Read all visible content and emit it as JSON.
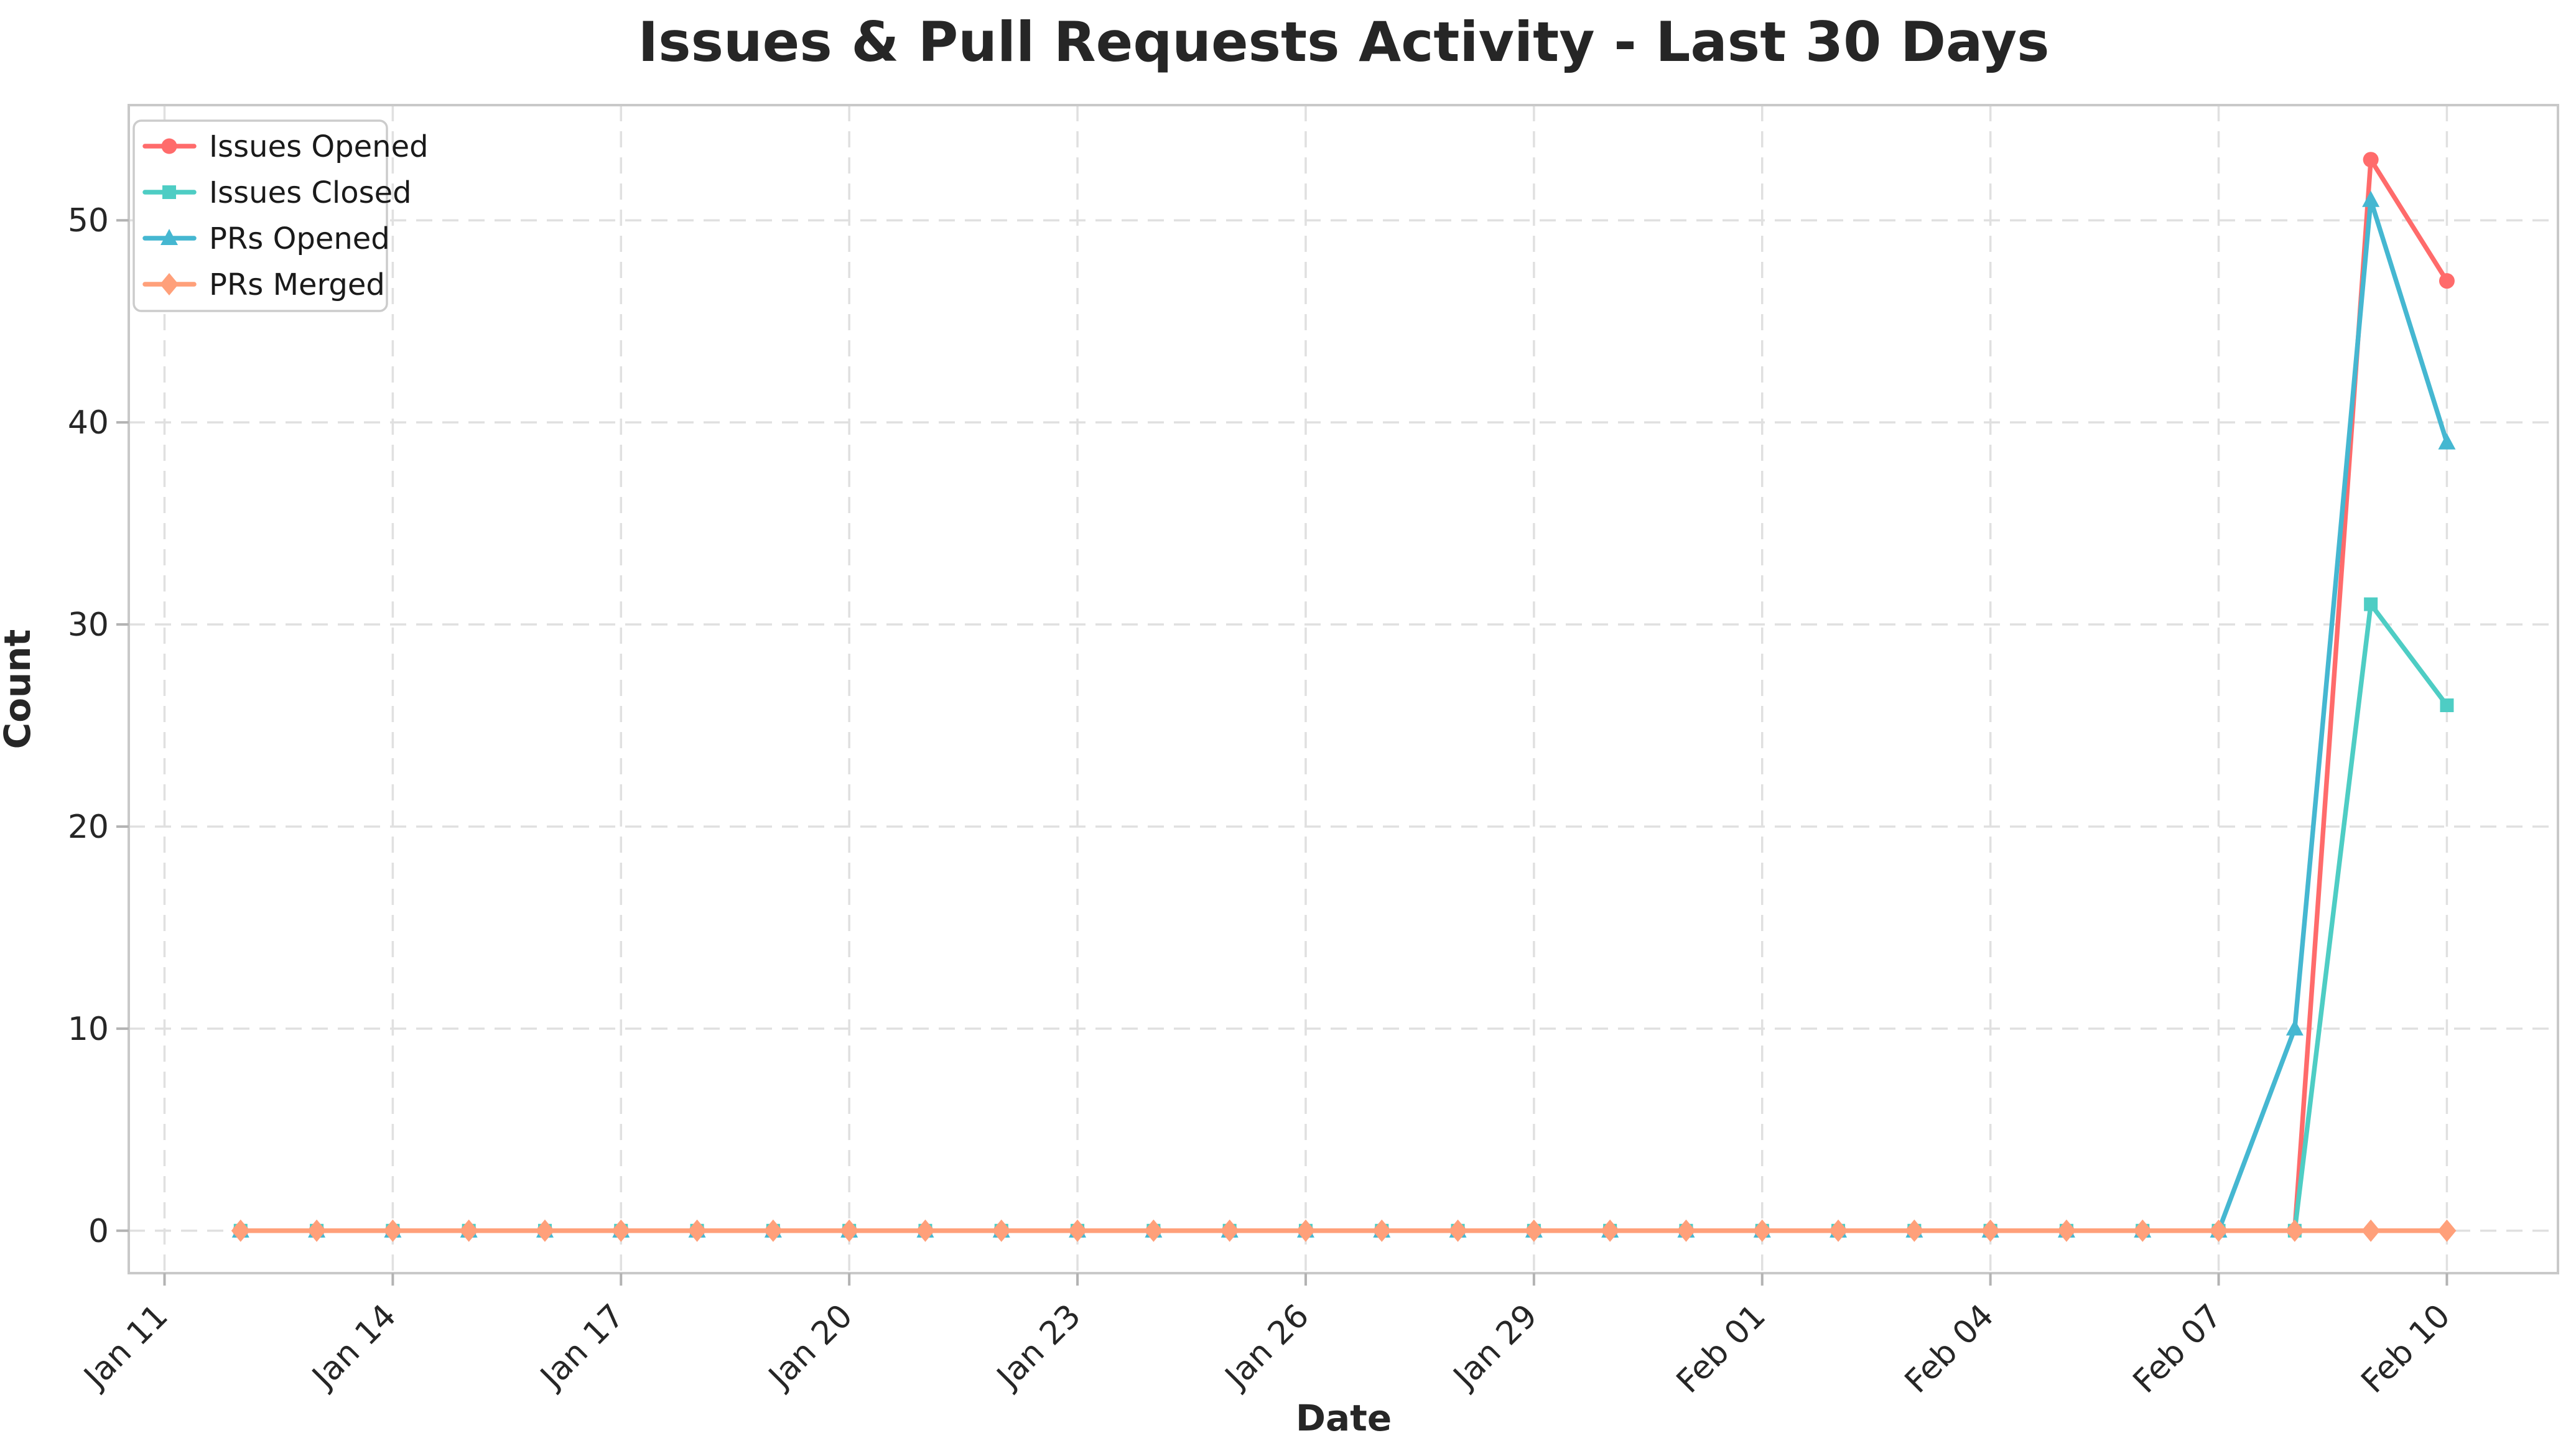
{
  "chart_data": {
    "type": "line",
    "title": "Issues & Pull Requests Activity - Last 30 Days",
    "xlabel": "Date",
    "ylabel": "Count",
    "grid": true,
    "legend_position": "upper-left",
    "background_color": "#ffffff",
    "gridline_color": "#e0e0e0",
    "spine_color": "#c9c9c9",
    "text_color": "#262626",
    "ylim": [
      -2.1,
      55.7
    ],
    "y_ticks": [
      0,
      10,
      20,
      30,
      40,
      50
    ],
    "x_ticks": [
      {
        "label": "Jan 11",
        "day": 0
      },
      {
        "label": "Jan 14",
        "day": 3
      },
      {
        "label": "Jan 17",
        "day": 6
      },
      {
        "label": "Jan 20",
        "day": 9
      },
      {
        "label": "Jan 23",
        "day": 12
      },
      {
        "label": "Jan 26",
        "day": 15
      },
      {
        "label": "Jan 29",
        "day": 18
      },
      {
        "label": "Feb 01",
        "day": 21
      },
      {
        "label": "Feb 04",
        "day": 24
      },
      {
        "label": "Feb 07",
        "day": 27
      },
      {
        "label": "Feb 10",
        "day": 30
      }
    ],
    "x_start_day": 1,
    "x": [
      "Jan 12",
      "Jan 13",
      "Jan 14",
      "Jan 15",
      "Jan 16",
      "Jan 17",
      "Jan 18",
      "Jan 19",
      "Jan 20",
      "Jan 21",
      "Jan 22",
      "Jan 23",
      "Jan 24",
      "Jan 25",
      "Jan 26",
      "Jan 27",
      "Jan 28",
      "Jan 29",
      "Jan 30",
      "Jan 31",
      "Feb 01",
      "Feb 02",
      "Feb 03",
      "Feb 04",
      "Feb 05",
      "Feb 06",
      "Feb 07",
      "Feb 08",
      "Feb 09",
      "Feb 10"
    ],
    "series": [
      {
        "name": "Issues Opened",
        "color": "#FF6B6B",
        "marker": "circle",
        "values": [
          0,
          0,
          0,
          0,
          0,
          0,
          0,
          0,
          0,
          0,
          0,
          0,
          0,
          0,
          0,
          0,
          0,
          0,
          0,
          0,
          0,
          0,
          0,
          0,
          0,
          0,
          0,
          0,
          53,
          47
        ]
      },
      {
        "name": "Issues Closed",
        "color": "#4ECDC4",
        "marker": "square",
        "values": [
          0,
          0,
          0,
          0,
          0,
          0,
          0,
          0,
          0,
          0,
          0,
          0,
          0,
          0,
          0,
          0,
          0,
          0,
          0,
          0,
          0,
          0,
          0,
          0,
          0,
          0,
          0,
          0,
          31,
          26
        ]
      },
      {
        "name": "PRs Opened",
        "color": "#45B7D1",
        "marker": "triangle",
        "values": [
          0,
          0,
          0,
          0,
          0,
          0,
          0,
          0,
          0,
          0,
          0,
          0,
          0,
          0,
          0,
          0,
          0,
          0,
          0,
          0,
          0,
          0,
          0,
          0,
          0,
          0,
          0,
          10,
          51,
          39
        ]
      },
      {
        "name": "PRs Merged",
        "color": "#FFA07A",
        "marker": "diamond",
        "values": [
          0,
          0,
          0,
          0,
          0,
          0,
          0,
          0,
          0,
          0,
          0,
          0,
          0,
          0,
          0,
          0,
          0,
          0,
          0,
          0,
          0,
          0,
          0,
          0,
          0,
          0,
          0,
          0,
          0,
          0
        ]
      }
    ]
  }
}
